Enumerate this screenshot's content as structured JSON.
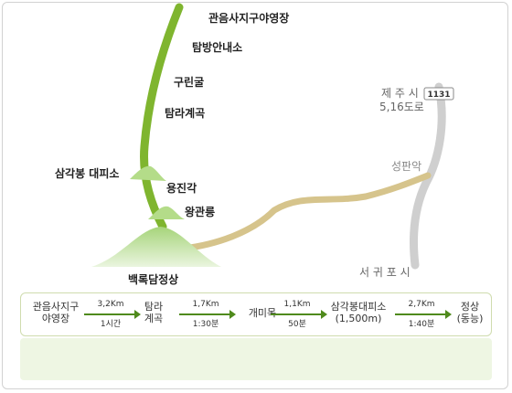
{
  "map": {
    "peak_label": "백록담정상",
    "trail_points": [
      {
        "name": "관음사지구야영장"
      },
      {
        "name": "탐방안내소"
      },
      {
        "name": "구린굴"
      },
      {
        "name": "탐라계곡"
      },
      {
        "name": "삼각봉 대피소"
      },
      {
        "name": "용진각"
      },
      {
        "name": "왕관릉"
      }
    ],
    "road": {
      "jeju_label": "제 주 시",
      "road_label": "5,16도로",
      "route_number": "1131",
      "seongpanak": "성판악",
      "seogwipo": "서 귀 포 시"
    }
  },
  "route": {
    "stops": [
      {
        "line1": "관음사지구",
        "line2": "야영장"
      },
      {
        "line1": "탐라",
        "line2": "계곡"
      },
      {
        "line1": "개미목",
        "line2": ""
      },
      {
        "line1": "삼각봉대피소",
        "line2": "(1,500m)"
      },
      {
        "line1": "정상",
        "line2": "(동능)"
      }
    ],
    "segments": [
      {
        "distance": "3,2Km",
        "time": "1시간"
      },
      {
        "distance": "1,7Km",
        "time": "1:30분"
      },
      {
        "distance": "1,1Km",
        "time": "50분"
      },
      {
        "distance": "2,7Km",
        "time": "1:40분"
      }
    ]
  },
  "colors": {
    "trail": "#7fb52f",
    "road_gray": "#cfcfcf",
    "road_tan": "#d6c48c",
    "arrow": "#4f8a1c"
  }
}
